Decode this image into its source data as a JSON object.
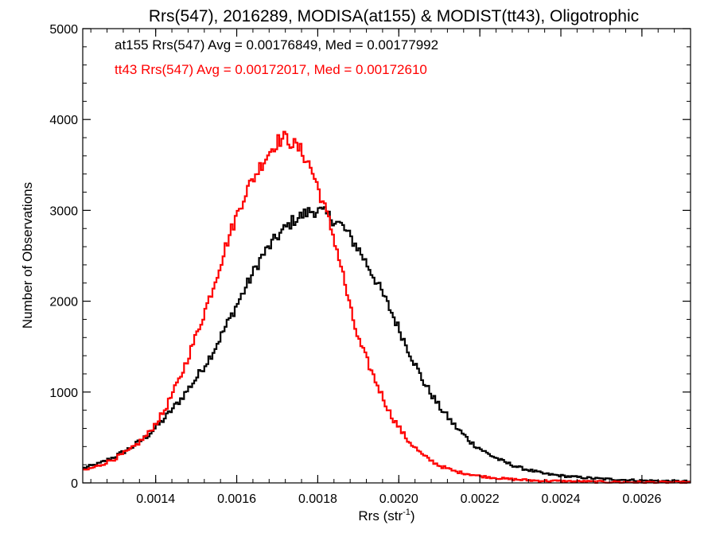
{
  "chart_data": {
    "type": "line",
    "step": true,
    "title": "Rrs(547), 2016289, MODISA(at155) & MODIST(tt43), Oligotrophic",
    "xlabel": {
      "text": "Rrs (str",
      "sup": "-1",
      "suffix": ")"
    },
    "ylabel": "Number of Observations",
    "xlim": [
      0.00122,
      0.00272
    ],
    "ylim": [
      0,
      5000
    ],
    "xticks": [
      0.0014,
      0.0016,
      0.0018,
      0.002,
      0.0022,
      0.0024,
      0.0026
    ],
    "xtick_labels": [
      "0.0014",
      "0.0016",
      "0.0018",
      "0.0020",
      "0.0022",
      "0.0024",
      "0.0026"
    ],
    "yticks": [
      0,
      1000,
      2000,
      3000,
      4000,
      5000
    ],
    "ytick_labels": [
      "0",
      "1000",
      "2000",
      "3000",
      "4000",
      "5000"
    ],
    "grid": false,
    "annotations": [
      {
        "text": "at155 Rrs(547) Avg = 0.00176849, Med = 0.00177992",
        "color": "#000000"
      },
      {
        "text": "tt43 Rrs(547) Avg = 0.00172017, Med = 0.00172610",
        "color": "#ff0000"
      }
    ],
    "series": [
      {
        "color": "#000000",
        "x": [
          0.00122,
          0.00126,
          0.0013,
          0.00134,
          0.00138,
          0.00142,
          0.00146,
          0.0015,
          0.00154,
          0.00158,
          0.00162,
          0.00166,
          0.0017,
          0.00174,
          0.00178,
          0.0018,
          0.00182,
          0.00186,
          0.0019,
          0.00194,
          0.00198,
          0.00202,
          0.00206,
          0.0021,
          0.00214,
          0.00218,
          0.00222,
          0.00226,
          0.0023,
          0.00236,
          0.00242,
          0.0025,
          0.0026,
          0.00272
        ],
        "values": [
          160,
          210,
          290,
          390,
          520,
          700,
          910,
          1150,
          1430,
          1780,
          2130,
          2480,
          2710,
          2890,
          2990,
          3000,
          2960,
          2830,
          2580,
          2260,
          1900,
          1500,
          1120,
          840,
          620,
          440,
          320,
          230,
          165,
          100,
          70,
          45,
          25,
          15
        ]
      },
      {
        "color": "#ff0000",
        "x": [
          0.00122,
          0.00126,
          0.0013,
          0.00134,
          0.00138,
          0.00142,
          0.00146,
          0.0015,
          0.00154,
          0.00158,
          0.00162,
          0.00166,
          0.00168,
          0.0017,
          0.00172,
          0.00174,
          0.00176,
          0.00178,
          0.0018,
          0.00182,
          0.00184,
          0.00186,
          0.00188,
          0.0019,
          0.00194,
          0.00198,
          0.00202,
          0.00206,
          0.0021,
          0.00214,
          0.0022,
          0.00226,
          0.00234,
          0.00244,
          0.00256,
          0.00272
        ],
        "values": [
          130,
          190,
          270,
          370,
          530,
          780,
          1150,
          1620,
          2130,
          2700,
          3180,
          3500,
          3640,
          3760,
          3800,
          3730,
          3650,
          3500,
          3260,
          2990,
          2700,
          2340,
          1920,
          1580,
          1150,
          750,
          480,
          300,
          190,
          125,
          75,
          45,
          25,
          15,
          8,
          4
        ]
      }
    ]
  }
}
